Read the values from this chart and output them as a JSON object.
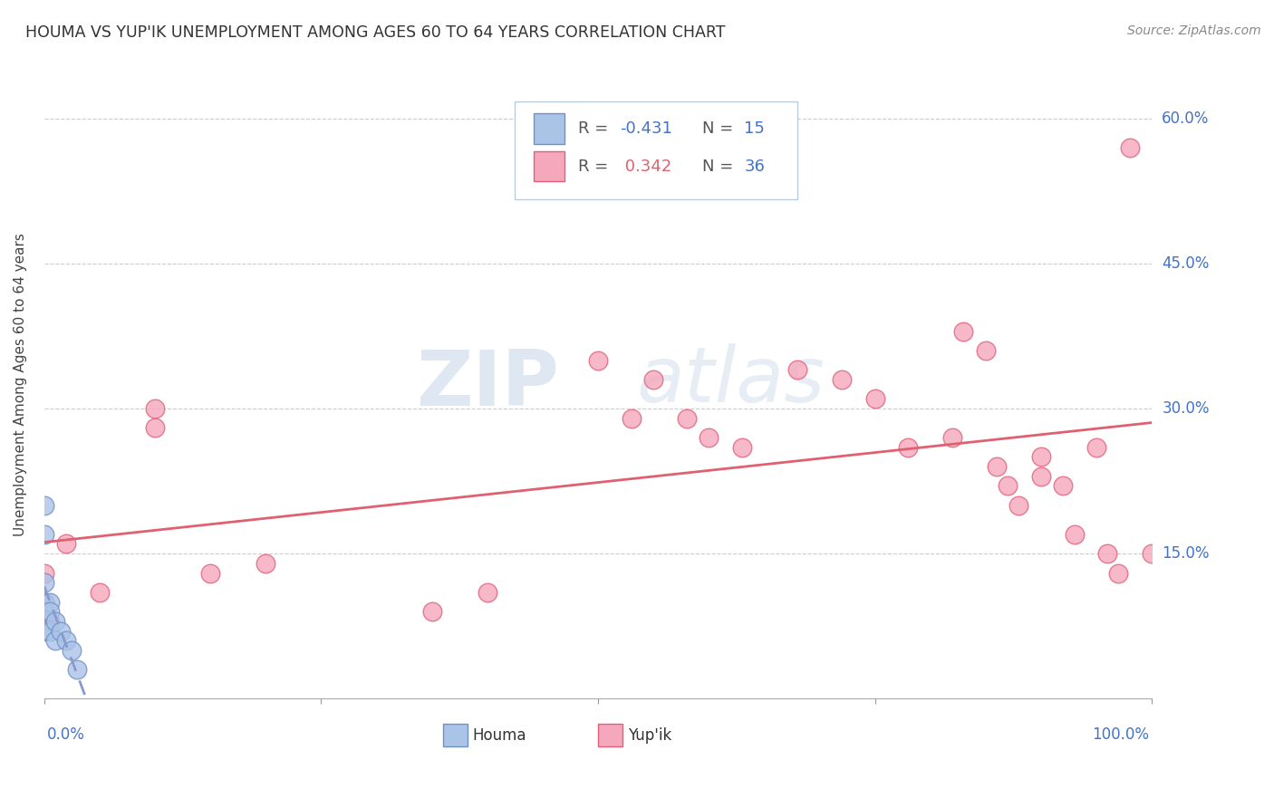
{
  "title": "HOUMA VS YUP'IK UNEMPLOYMENT AMONG AGES 60 TO 64 YEARS CORRELATION CHART",
  "source": "Source: ZipAtlas.com",
  "ylabel": "Unemployment Among Ages 60 to 64 years",
  "xlim": [
    0.0,
    1.0
  ],
  "ylim": [
    0.0,
    0.65
  ],
  "xticks": [
    0.0,
    0.25,
    0.5,
    0.75,
    1.0
  ],
  "ytick_positions": [
    0.15,
    0.3,
    0.45,
    0.6
  ],
  "ytick_labels": [
    "15.0%",
    "30.0%",
    "45.0%",
    "60.0%"
  ],
  "houma_R": -0.431,
  "houma_N": 15,
  "yupik_R": 0.342,
  "yupik_N": 36,
  "houma_color": "#aac4e8",
  "yupik_color": "#f5a8bc",
  "houma_edge_color": "#7090c8",
  "yupik_edge_color": "#e0607a",
  "houma_line_color": "#8899cc",
  "yupik_line_color": "#e06070",
  "houma_points_x": [
    0.0,
    0.0,
    0.0,
    0.0,
    0.0,
    0.0,
    0.005,
    0.005,
    0.005,
    0.01,
    0.01,
    0.015,
    0.02,
    0.025,
    0.03
  ],
  "houma_points_y": [
    0.2,
    0.17,
    0.12,
    0.1,
    0.09,
    0.07,
    0.1,
    0.09,
    0.07,
    0.08,
    0.06,
    0.07,
    0.06,
    0.05,
    0.03
  ],
  "yupik_points_x": [
    0.0,
    0.0,
    0.005,
    0.02,
    0.05,
    0.1,
    0.1,
    0.15,
    0.2,
    0.35,
    0.4,
    0.5,
    0.53,
    0.55,
    0.58,
    0.6,
    0.63,
    0.68,
    0.72,
    0.75,
    0.78,
    0.82,
    0.83,
    0.85,
    0.86,
    0.87,
    0.88,
    0.9,
    0.9,
    0.92,
    0.93,
    0.95,
    0.96,
    0.97,
    0.98,
    1.0
  ],
  "yupik_points_y": [
    0.13,
    0.1,
    0.08,
    0.16,
    0.11,
    0.3,
    0.28,
    0.13,
    0.14,
    0.09,
    0.11,
    0.35,
    0.29,
    0.33,
    0.29,
    0.27,
    0.26,
    0.34,
    0.33,
    0.31,
    0.26,
    0.27,
    0.38,
    0.36,
    0.24,
    0.22,
    0.2,
    0.25,
    0.23,
    0.22,
    0.17,
    0.26,
    0.15,
    0.13,
    0.57,
    0.15
  ],
  "watermark_zip": "ZIP",
  "watermark_atlas": "atlas",
  "background_color": "#ffffff",
  "grid_color": "#cccccc",
  "legend_text_color": "#4472c4",
  "legend_yupik_val_color": "#e06070"
}
